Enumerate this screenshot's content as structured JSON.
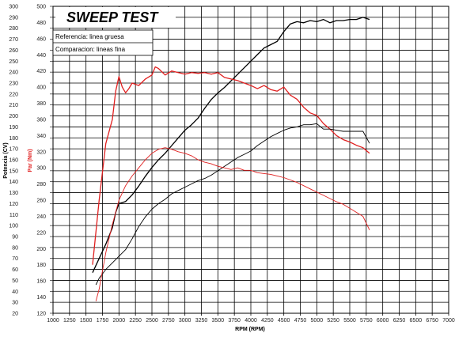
{
  "chart_data": {
    "type": "line",
    "title": "SWEEP TEST",
    "xlabel": "RPM (RPM)",
    "ylabel_left": "Potencia (CV)",
    "ylabel_right": "Par (Nm)",
    "xlim": [
      1000,
      7000
    ],
    "x_ticks": [
      "1000",
      "1250",
      "1500",
      "1750",
      "2000",
      "2250",
      "2500",
      "2750",
      "3000",
      "3250",
      "3500",
      "3750",
      "4000",
      "4250",
      "4500",
      "4750",
      "5000",
      "5250",
      "5500",
      "5750",
      "6000",
      "6250",
      "6500",
      "6750",
      "7000"
    ],
    "ylim_left": [
      20,
      300
    ],
    "y_ticks_left": [
      "20",
      "30",
      "40",
      "50",
      "60",
      "70",
      "80",
      "90",
      "100",
      "110",
      "120",
      "130",
      "140",
      "150",
      "160",
      "170",
      "180",
      "190",
      "200",
      "210",
      "220",
      "230",
      "240",
      "250",
      "260",
      "270",
      "280",
      "290",
      "300"
    ],
    "ylim_right": [
      120,
      500
    ],
    "y_ticks_right": [
      "120",
      "140",
      "160",
      "180",
      "200",
      "220",
      "240",
      "260",
      "280",
      "300",
      "320",
      "340",
      "360",
      "380",
      "400",
      "420",
      "440",
      "460",
      "480",
      "500"
    ],
    "grid": true,
    "legend": {
      "position": "top-left",
      "entries": [
        "Referencia: linea gruesa",
        "Comparacion: lineas fina"
      ]
    },
    "colors": {
      "power": "#000000",
      "torque": "#e02020",
      "grid": "#000000"
    },
    "series": [
      {
        "name": "Referencia: linea gruesa",
        "metric": "Potencia (CV)",
        "axis": "left",
        "color": "#000000",
        "points": [
          [
            1600,
            57
          ],
          [
            1700,
            70
          ],
          [
            1800,
            83
          ],
          [
            1900,
            98
          ],
          [
            1950,
            112
          ],
          [
            2000,
            120
          ],
          [
            2100,
            122
          ],
          [
            2200,
            128
          ],
          [
            2300,
            136
          ],
          [
            2400,
            145
          ],
          [
            2500,
            153
          ],
          [
            2600,
            160
          ],
          [
            2700,
            166
          ],
          [
            2800,
            173
          ],
          [
            2900,
            180
          ],
          [
            3000,
            187
          ],
          [
            3100,
            192
          ],
          [
            3200,
            198
          ],
          [
            3300,
            207
          ],
          [
            3400,
            215
          ],
          [
            3500,
            221
          ],
          [
            3600,
            226
          ],
          [
            3700,
            232
          ],
          [
            3800,
            238
          ],
          [
            3900,
            244
          ],
          [
            4000,
            250
          ],
          [
            4100,
            256
          ],
          [
            4200,
            262
          ],
          [
            4300,
            265
          ],
          [
            4400,
            268
          ],
          [
            4500,
            277
          ],
          [
            4600,
            284
          ],
          [
            4700,
            286
          ],
          [
            4800,
            285
          ],
          [
            4900,
            287
          ],
          [
            5000,
            286
          ],
          [
            5100,
            288
          ],
          [
            5200,
            285
          ],
          [
            5300,
            287
          ],
          [
            5400,
            287
          ],
          [
            5500,
            288
          ],
          [
            5600,
            288
          ],
          [
            5700,
            290
          ],
          [
            5800,
            288
          ]
        ]
      },
      {
        "name": "Referencia: linea gruesa",
        "metric": "Par (Nm)",
        "axis": "right",
        "color": "#e02020",
        "points": [
          [
            1600,
            180
          ],
          [
            1700,
            260
          ],
          [
            1800,
            330
          ],
          [
            1900,
            360
          ],
          [
            1950,
            395
          ],
          [
            2000,
            413
          ],
          [
            2050,
            400
          ],
          [
            2100,
            393
          ],
          [
            2150,
            398
          ],
          [
            2200,
            405
          ],
          [
            2300,
            402
          ],
          [
            2400,
            410
          ],
          [
            2500,
            415
          ],
          [
            2550,
            425
          ],
          [
            2600,
            423
          ],
          [
            2700,
            415
          ],
          [
            2800,
            420
          ],
          [
            2900,
            418
          ],
          [
            3000,
            416
          ],
          [
            3100,
            418
          ],
          [
            3200,
            417
          ],
          [
            3300,
            418
          ],
          [
            3400,
            416
          ],
          [
            3500,
            418
          ],
          [
            3600,
            412
          ],
          [
            3700,
            410
          ],
          [
            3800,
            408
          ],
          [
            3900,
            405
          ],
          [
            4000,
            402
          ],
          [
            4100,
            398
          ],
          [
            4200,
            402
          ],
          [
            4300,
            397
          ],
          [
            4400,
            395
          ],
          [
            4500,
            400
          ],
          [
            4600,
            390
          ],
          [
            4700,
            385
          ],
          [
            4800,
            375
          ],
          [
            4900,
            368
          ],
          [
            5000,
            365
          ],
          [
            5100,
            355
          ],
          [
            5200,
            348
          ],
          [
            5300,
            340
          ],
          [
            5400,
            335
          ],
          [
            5500,
            332
          ],
          [
            5600,
            328
          ],
          [
            5700,
            325
          ],
          [
            5800,
            318
          ]
        ]
      },
      {
        "name": "Comparacion: lineas fina",
        "metric": "Potencia (CV)",
        "axis": "left",
        "color": "#000000",
        "points": [
          [
            1650,
            46
          ],
          [
            1700,
            52
          ],
          [
            1800,
            60
          ],
          [
            1900,
            66
          ],
          [
            2000,
            72
          ],
          [
            2100,
            78
          ],
          [
            2200,
            88
          ],
          [
            2300,
            99
          ],
          [
            2400,
            108
          ],
          [
            2500,
            115
          ],
          [
            2600,
            120
          ],
          [
            2700,
            124
          ],
          [
            2800,
            129
          ],
          [
            2900,
            132
          ],
          [
            3000,
            135
          ],
          [
            3100,
            138
          ],
          [
            3200,
            141
          ],
          [
            3300,
            143
          ],
          [
            3400,
            146
          ],
          [
            3500,
            150
          ],
          [
            3600,
            154
          ],
          [
            3700,
            158
          ],
          [
            3800,
            162
          ],
          [
            3900,
            165
          ],
          [
            4000,
            168
          ],
          [
            4100,
            173
          ],
          [
            4200,
            177
          ],
          [
            4300,
            181
          ],
          [
            4400,
            184
          ],
          [
            4500,
            187
          ],
          [
            4600,
            189
          ],
          [
            4700,
            190
          ],
          [
            4800,
            192
          ],
          [
            4900,
            192
          ],
          [
            5000,
            193
          ],
          [
            5100,
            188
          ],
          [
            5200,
            188
          ],
          [
            5300,
            187
          ],
          [
            5400,
            186
          ],
          [
            5500,
            186
          ],
          [
            5600,
            186
          ],
          [
            5700,
            186
          ],
          [
            5800,
            175
          ]
        ]
      },
      {
        "name": "Comparacion: lineas fina",
        "metric": "Par (Nm)",
        "axis": "right",
        "color": "#e02020",
        "points": [
          [
            1650,
            135
          ],
          [
            1700,
            150
          ],
          [
            1800,
            195
          ],
          [
            1900,
            230
          ],
          [
            2000,
            260
          ],
          [
            2100,
            278
          ],
          [
            2200,
            290
          ],
          [
            2300,
            300
          ],
          [
            2400,
            310
          ],
          [
            2500,
            318
          ],
          [
            2600,
            323
          ],
          [
            2700,
            325
          ],
          [
            2800,
            323
          ],
          [
            2900,
            320
          ],
          [
            3000,
            318
          ],
          [
            3100,
            315
          ],
          [
            3200,
            310
          ],
          [
            3300,
            307
          ],
          [
            3400,
            305
          ],
          [
            3500,
            302
          ],
          [
            3600,
            300
          ],
          [
            3700,
            298
          ],
          [
            3800,
            300
          ],
          [
            3900,
            297
          ],
          [
            4000,
            297
          ],
          [
            4100,
            294
          ],
          [
            4200,
            293
          ],
          [
            4300,
            292
          ],
          [
            4400,
            290
          ],
          [
            4500,
            288
          ],
          [
            4600,
            285
          ],
          [
            4700,
            282
          ],
          [
            4800,
            278
          ],
          [
            4900,
            274
          ],
          [
            5000,
            270
          ],
          [
            5100,
            266
          ],
          [
            5200,
            262
          ],
          [
            5300,
            258
          ],
          [
            5400,
            255
          ],
          [
            5500,
            250
          ],
          [
            5600,
            245
          ],
          [
            5700,
            240
          ],
          [
            5800,
            223
          ]
        ]
      }
    ]
  }
}
